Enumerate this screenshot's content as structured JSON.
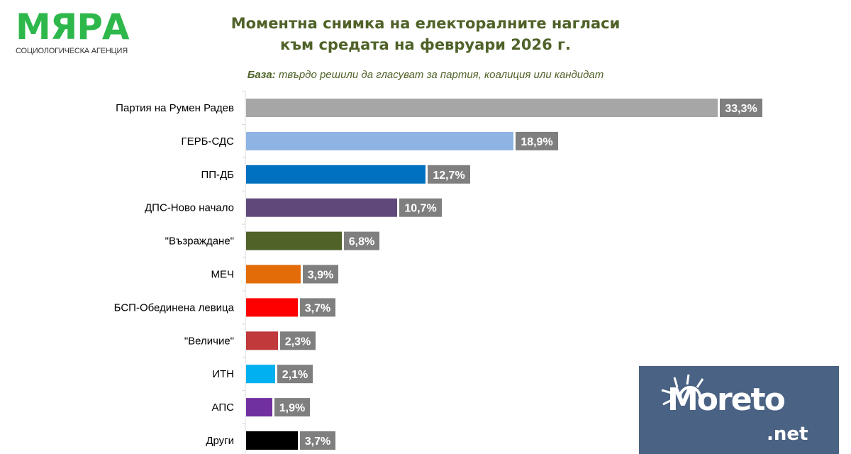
{
  "logo": {
    "name": "МЯРА",
    "subtitle": "СОЦИОЛОГИЧЕСКА АГЕНЦИЯ",
    "color": "#2eb84b"
  },
  "watermark": {
    "text": "Moreto",
    "suffix": ".net",
    "background": "#4a6283"
  },
  "chart_data": {
    "type": "bar",
    "orientation": "horizontal",
    "title": [
      "Моментна снимка на електоралните нагласи",
      "към средата на февруари 2026 г."
    ],
    "subtitle_label": "База:",
    "subtitle_text": " твърдо решили да гласуват за партия, коалиция или кандидат",
    "categories": [
      "Партия на Румен Радев",
      "ГЕРБ-СДС",
      "ПП-ДБ",
      "ДПС-Ново начало",
      "\"Възраждане\"",
      "МЕЧ",
      "БСП-Обединена левица",
      "\"Величие\"",
      "ИТН",
      "АПС",
      "Други"
    ],
    "values": [
      33.3,
      18.9,
      12.7,
      10.7,
      6.8,
      3.9,
      3.7,
      2.3,
      2.1,
      1.9,
      3.7
    ],
    "data_labels": [
      "33,3%",
      "18,9%",
      "12,7%",
      "10,7%",
      "6,8%",
      "3,9%",
      "3,7%",
      "2,3%",
      "2,1%",
      "1,9%",
      "3,7%"
    ],
    "colors": [
      "#a6a6a6",
      "#8eb4e3",
      "#0070c0",
      "#60497a",
      "#4f6228",
      "#e36c09",
      "#ff0000",
      "#c0393b",
      "#00b0f0",
      "#7030a0",
      "#000000"
    ],
    "label_box_color": "#7f7f7f",
    "title_color": "#4f6228",
    "xlim": [
      0,
      33.3
    ],
    "grid": false,
    "legend": "none"
  }
}
